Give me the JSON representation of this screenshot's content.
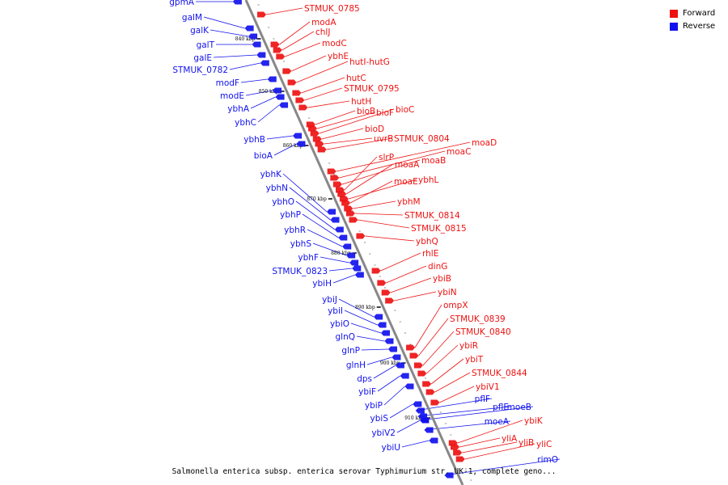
{
  "colors": {
    "forward": "#ee1111",
    "reverse": "#1111ee",
    "backbone": "#888888"
  },
  "legend": {
    "forward": "Forward",
    "reverse": "Reverse"
  },
  "caption": "Salmonella enterica subsp. enterica serovar Typhimurium str. UK-1, complete geno...",
  "ticks": [
    "840 kbp",
    "850 kbp",
    "860 kbp",
    "870 kbp",
    "880 kbp",
    "890 kbp",
    "900 kbp",
    "910 kbp"
  ],
  "forward_genes": [
    "STMUK_0785",
    "modA",
    "chlJ",
    "modC",
    "ybhE",
    "hutI-hutG",
    "hutC",
    "STMUK_0795",
    "hutH",
    "bioB",
    "bioF",
    "bioC",
    "bioD",
    "uvrB",
    "STMUK_0804",
    "moaD",
    "moaC",
    "moaB",
    "slrP",
    "moaA",
    "ybhL",
    "moaE",
    "ybhM",
    "STMUK_0814",
    "STMUK_0815",
    "ybhQ",
    "rhlE",
    "dinG",
    "ybiB",
    "ybiN",
    "ompX",
    "STMUK_0839",
    "STMUK_0840",
    "ybiR",
    "ybiT",
    "STMUK_0844",
    "ybiV1",
    "ybiK",
    "yliA",
    "yliB",
    "yliC"
  ],
  "reverse_genes": [
    "gpmA",
    "galM",
    "galK",
    "galT",
    "galE",
    "STMUK_0782",
    "modF",
    "modE",
    "ybhA",
    "ybhC",
    "ybhB",
    "bioA",
    "ybhK",
    "ybhN",
    "ybhO",
    "ybhP",
    "ybhR",
    "ybhS",
    "ybhF",
    "STMUK_0823",
    "ybiH",
    "ybiJ",
    "ybiI",
    "ybiO",
    "glnQ",
    "glnP",
    "glnH",
    "dps",
    "ybiF",
    "ybiP",
    "ybiS",
    "ybiV2",
    "ybiU",
    "pflF",
    "pflE",
    "moeB",
    "moeA",
    "rimO"
  ]
}
